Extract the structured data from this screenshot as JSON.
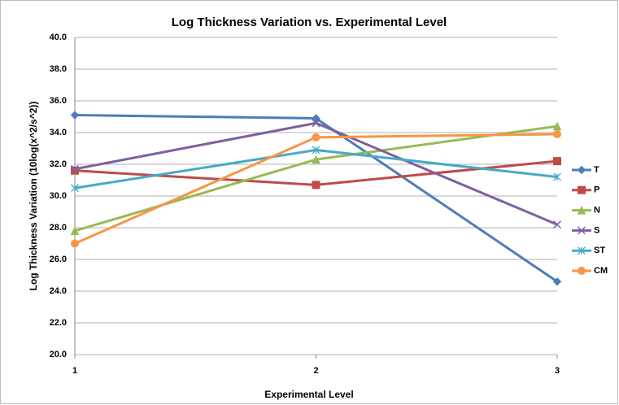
{
  "chart_data": {
    "type": "line",
    "title": "Log Thickness Variation vs. Experimental Level",
    "x_label": "Experimental Level",
    "y_label": "Log Thickness Variation (10log(x^2/s^2))",
    "x": [
      1,
      2,
      3
    ],
    "xlim": [
      1,
      3
    ],
    "xticks": [
      1,
      2,
      3
    ],
    "ylim": [
      20,
      40
    ],
    "yticks": [
      {
        "value": 20,
        "label": "20.0"
      },
      {
        "value": 22,
        "label": "22.0"
      },
      {
        "value": 24,
        "label": "24.0"
      },
      {
        "value": 26,
        "label": "26.0"
      },
      {
        "value": 28,
        "label": "28.0"
      },
      {
        "value": 30,
        "label": "30.0"
      },
      {
        "value": 32,
        "label": "32.0"
      },
      {
        "value": 34,
        "label": "34.0"
      },
      {
        "value": 36,
        "label": "36.0"
      },
      {
        "value": 38,
        "label": "38.0"
      },
      {
        "value": 40,
        "label": "40.0"
      }
    ],
    "grid": true,
    "legend": "right",
    "series": [
      {
        "name": "T",
        "color": "#4a7ebb",
        "marker": "diamond",
        "values": [
          35.1,
          34.9,
          24.6
        ]
      },
      {
        "name": "P",
        "color": "#be4b48",
        "marker": "square",
        "values": [
          31.6,
          30.7,
          32.2
        ]
      },
      {
        "name": "N",
        "color": "#98b954",
        "marker": "triangle",
        "values": [
          27.8,
          32.3,
          34.4
        ]
      },
      {
        "name": "S",
        "color": "#7d60a0",
        "marker": "x",
        "values": [
          31.7,
          34.6,
          28.2
        ]
      },
      {
        "name": "ST",
        "color": "#46aac5",
        "marker": "star",
        "values": [
          30.5,
          32.9,
          31.2
        ]
      },
      {
        "name": "CM",
        "color": "#f79646",
        "marker": "circle",
        "values": [
          27.0,
          33.7,
          33.9
        ]
      }
    ]
  }
}
